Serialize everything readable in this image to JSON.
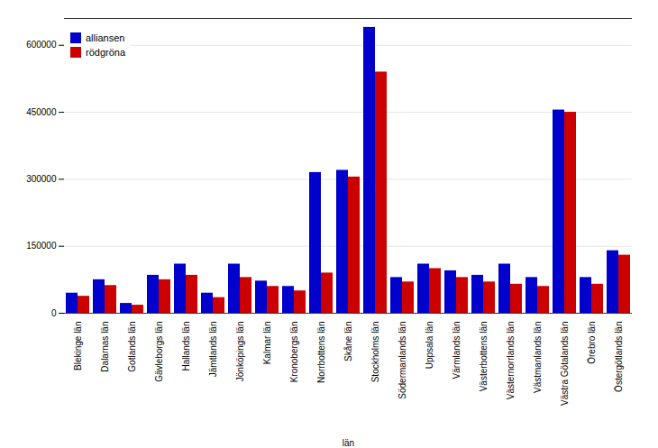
{
  "chart_data": {
    "type": "bar",
    "categories": [
      "Blekinge län",
      "Dalarnas län",
      "Gotlands län",
      "Gävleborgs län",
      "Hallands län",
      "Jämtlands län",
      "Jönköpings län",
      "Kalmar län",
      "Kronobergs län",
      "Norrbottens län",
      "Skåne län",
      "Stockholms län",
      "Södermanlands län",
      "Uppsala län",
      "Värmlands län",
      "Västerbottens län",
      "Västernorrlands län",
      "Västmanlands län",
      "Västra Götalands län",
      "Örebro län",
      "Östergötlands län"
    ],
    "series": [
      {
        "name": "alliansen",
        "color": "#0000cc",
        "values": [
          45000,
          75000,
          22000,
          85000,
          110000,
          45000,
          110000,
          72000,
          60000,
          315000,
          320000,
          640000,
          80000,
          110000,
          95000,
          85000,
          110000,
          80000,
          455000,
          80000,
          140000
        ]
      },
      {
        "name": "rödgröna",
        "color": "#cc0000",
        "values": [
          38000,
          62000,
          18000,
          75000,
          85000,
          35000,
          80000,
          60000,
          50000,
          90000,
          305000,
          540000,
          70000,
          100000,
          80000,
          70000,
          65000,
          60000,
          450000,
          65000,
          130000
        ]
      }
    ],
    "xlabel": "län",
    "ylim": [
      0,
      660000
    ],
    "yticks": [
      0,
      150000,
      300000,
      450000,
      600000
    ],
    "grid": true,
    "legend": "upper left"
  }
}
